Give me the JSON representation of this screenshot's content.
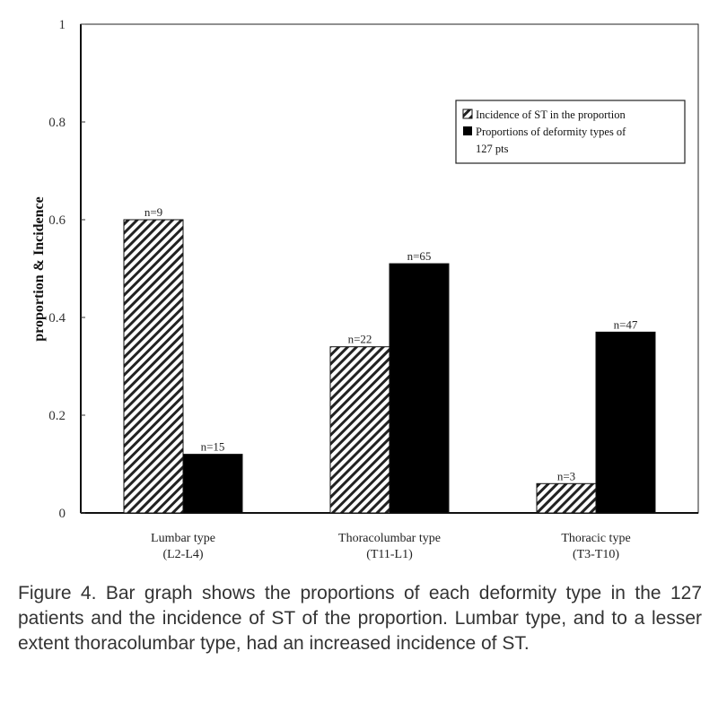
{
  "chart_data": {
    "type": "bar",
    "title": "",
    "xlabel": "",
    "ylabel": "proportion & Incidence",
    "ylim": [
      0,
      1
    ],
    "yticks": [
      "0",
      "0.2",
      "0.4",
      "0.6",
      "0.8",
      "1"
    ],
    "categories": [
      {
        "line1": "Lumbar type",
        "line2": "(L2-L4)"
      },
      {
        "line1": "Thoracolumbar type",
        "line2": "(T11-L1)"
      },
      {
        "line1": "Thoracic type",
        "line2": "(T3-T10)"
      }
    ],
    "series": [
      {
        "name": "Incidence of ST in the proportion",
        "pattern": "hatched",
        "values": [
          0.6,
          0.34,
          0.06
        ],
        "labels": [
          "n=9",
          "n=22",
          "n=3"
        ]
      },
      {
        "name": "Proportions of deformity types of 127 pts",
        "legend_line1": "Proportions of deformity types of",
        "legend_line2": "127 pts",
        "pattern": "solid",
        "color": "#000000",
        "values": [
          0.12,
          0.51,
          0.37
        ],
        "labels": [
          "n=15",
          "n=65",
          "n=47"
        ]
      }
    ],
    "legend_position": "top-right",
    "grid": false
  },
  "caption": "Figure 4.  Bar graph shows the proportions of each deformity type in the 127 patients and the incidence of ST of the proportion. Lumbar type, and to a lesser extent thoracolumbar type, had an increased incidence of ST."
}
